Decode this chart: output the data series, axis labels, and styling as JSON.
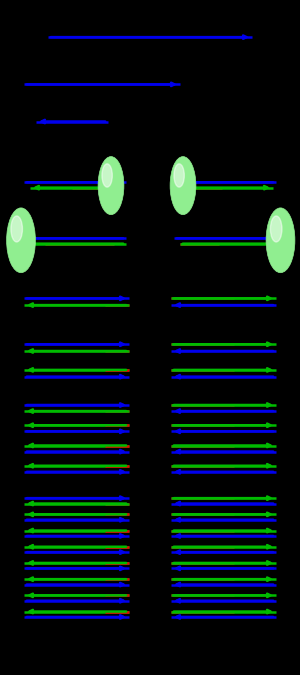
{
  "bg": "#000000",
  "blue": "#0000EE",
  "green": "#00BB00",
  "red": "#EE0000",
  "pc": "#90EE90",
  "lw": 1.8,
  "fig_w": 3.0,
  "fig_h": 6.75,
  "dpi": 100
}
